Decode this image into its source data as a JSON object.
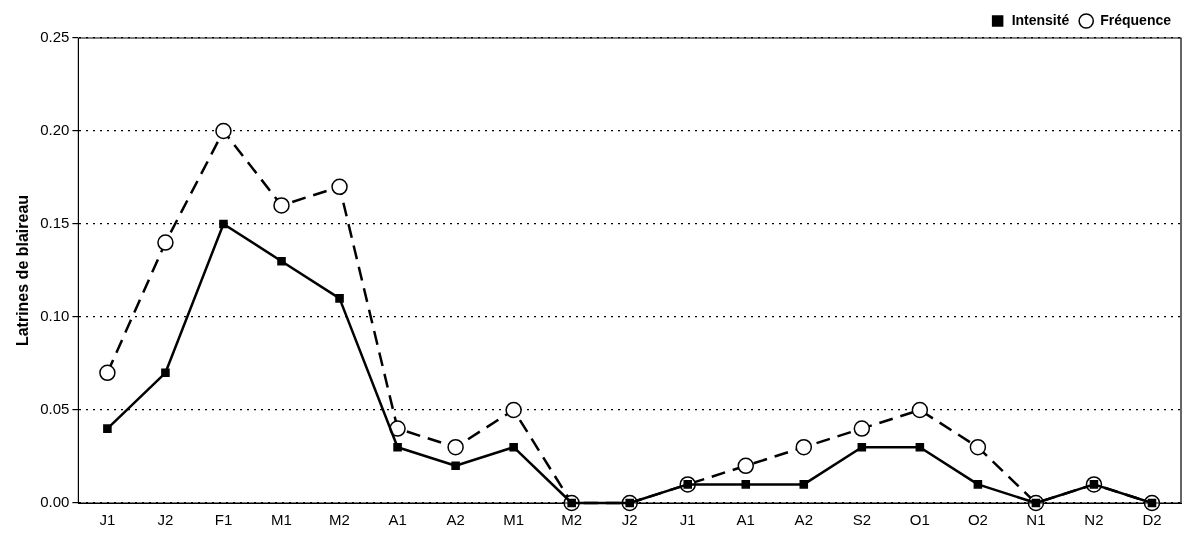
{
  "chart_data": {
    "type": "line",
    "ylabel": "Latrines de blaireau",
    "categories": [
      "J1",
      "J2",
      "F1",
      "M1",
      "M2",
      "A1",
      "A2",
      "M1",
      "M2",
      "J2",
      "J1",
      "A1",
      "A2",
      "S2",
      "O1",
      "O2",
      "N1",
      "N2",
      "D2"
    ],
    "series": [
      {
        "name": "Fréquence",
        "color": "#000000",
        "marker": "circle",
        "line_style": "dashed",
        "values": [
          0.07,
          0.14,
          0.2,
          0.16,
          0.17,
          0.04,
          0.03,
          0.05,
          0.0,
          0.0,
          0.01,
          0.02,
          0.03,
          0.04,
          0.05,
          0.03,
          0.0,
          0.01,
          0.0
        ]
      },
      {
        "name": "Intensité",
        "color": "#000000",
        "marker": "square",
        "line_style": "solid",
        "values": [
          0.04,
          0.07,
          0.15,
          0.13,
          0.11,
          0.03,
          0.02,
          0.03,
          0.0,
          0.0,
          0.01,
          0.01,
          0.01,
          0.03,
          0.03,
          0.01,
          0.0,
          0.01,
          0.0
        ]
      }
    ],
    "ylim": [
      0,
      0.25
    ],
    "yticks": [
      {
        "value": 0,
        "label": "0.00"
      },
      {
        "value": 0.05,
        "label": "0.05"
      },
      {
        "value": 0.1,
        "label": "0.10"
      },
      {
        "value": 0.15,
        "label": "0.15"
      },
      {
        "value": 0.2,
        "label": "0.20"
      },
      {
        "value": 0.25,
        "label": "0.25"
      }
    ],
    "grid": "y",
    "legend": "top right"
  }
}
